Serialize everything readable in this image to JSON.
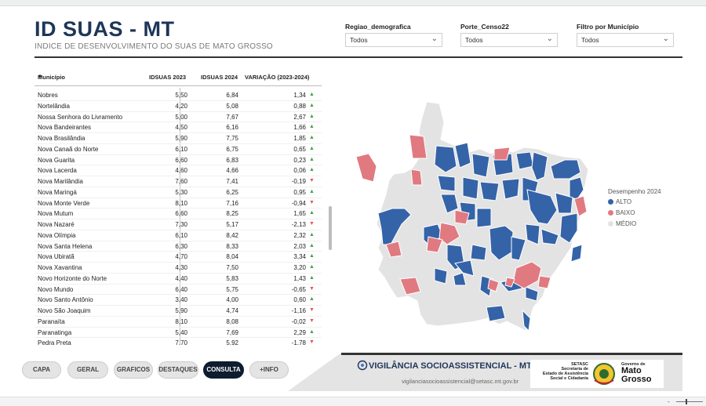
{
  "header": {
    "title": "ID SUAS - MT",
    "subtitle": "INDICE DE DESENVOLVIMENTO DO SUAS DE MATO GROSSO"
  },
  "filters": [
    {
      "label": "Regiao_demografica",
      "value": "Todos"
    },
    {
      "label": "Porte_Censo22",
      "value": "Todos"
    },
    {
      "label": "Filtro por Município",
      "value": "Todos"
    }
  ],
  "table": {
    "columns": [
      "Município",
      "IDSUAS 2023",
      "IDSUAS 2024",
      "VARIAÇÃO (2023-2024)"
    ],
    "rows": [
      {
        "name": "Nobres",
        "a": "5,50",
        "b": "6,84",
        "v": "1,34",
        "trend": "up"
      },
      {
        "name": "Nortelândia",
        "a": "4,20",
        "b": "5,08",
        "v": "0,88",
        "trend": "up"
      },
      {
        "name": "Nossa Senhora do Livramento",
        "a": "5,00",
        "b": "7,67",
        "v": "2,67",
        "trend": "up"
      },
      {
        "name": "Nova Bandeirantes",
        "a": "4,50",
        "b": "6,16",
        "v": "1,66",
        "trend": "up"
      },
      {
        "name": "Nova Brasilândia",
        "a": "5,90",
        "b": "7,75",
        "v": "1,85",
        "trend": "up"
      },
      {
        "name": "Nova Canaã do Norte",
        "a": "6,10",
        "b": "6,75",
        "v": "0,65",
        "trend": "up"
      },
      {
        "name": "Nova Guarita",
        "a": "6,60",
        "b": "6,83",
        "v": "0,23",
        "trend": "up"
      },
      {
        "name": "Nova Lacerda",
        "a": "4,60",
        "b": "4,66",
        "v": "0,06",
        "trend": "up"
      },
      {
        "name": "Nova Marilândia",
        "a": "7,60",
        "b": "7,41",
        "v": "-0,19",
        "trend": "down"
      },
      {
        "name": "Nova Maringá",
        "a": "5,30",
        "b": "6,25",
        "v": "0,95",
        "trend": "up"
      },
      {
        "name": "Nova Monte Verde",
        "a": "8,10",
        "b": "7,16",
        "v": "-0,94",
        "trend": "down"
      },
      {
        "name": "Nova Mutum",
        "a": "6,60",
        "b": "8,25",
        "v": "1,65",
        "trend": "up"
      },
      {
        "name": "Nova Nazaré",
        "a": "7,30",
        "b": "5,17",
        "v": "-2,13",
        "trend": "down"
      },
      {
        "name": "Nova Olímpia",
        "a": "6,10",
        "b": "8,42",
        "v": "2,32",
        "trend": "up"
      },
      {
        "name": "Nova Santa Helena",
        "a": "6,30",
        "b": "8,33",
        "v": "2,03",
        "trend": "up"
      },
      {
        "name": "Nova Ubiratã",
        "a": "4,70",
        "b": "8,04",
        "v": "3,34",
        "trend": "up"
      },
      {
        "name": "Nova Xavantina",
        "a": "4,30",
        "b": "7,50",
        "v": "3,20",
        "trend": "up"
      },
      {
        "name": "Novo Horizonte do Norte",
        "a": "4,40",
        "b": "5,83",
        "v": "1,43",
        "trend": "up"
      },
      {
        "name": "Novo Mundo",
        "a": "6,40",
        "b": "5,75",
        "v": "-0,65",
        "trend": "down"
      },
      {
        "name": "Novo Santo Antônio",
        "a": "3,40",
        "b": "4,00",
        "v": "0,60",
        "trend": "up"
      },
      {
        "name": "Novo São Joaquim",
        "a": "5,90",
        "b": "4,74",
        "v": "-1,16",
        "trend": "down"
      },
      {
        "name": "Paranaíta",
        "a": "8,10",
        "b": "8,08",
        "v": "-0,02",
        "trend": "down"
      },
      {
        "name": "Paranatinga",
        "a": "5,40",
        "b": "7,69",
        "v": "2,29",
        "trend": "up"
      },
      {
        "name": "Pedra Preta",
        "a": "7,70",
        "b": "5,92",
        "v": "-1,78",
        "trend": "down"
      }
    ]
  },
  "legend": {
    "title": "Desempenho 2024",
    "items": [
      {
        "label": "ALTO",
        "color": "#3463a8"
      },
      {
        "label": "BAIXO",
        "color": "#e07a80"
      },
      {
        "label": "MÉDIO",
        "color": "#e3e3e3"
      }
    ]
  },
  "nav": [
    "CAPA",
    "GERAL",
    "GRAFICOS",
    "DESTAQUES",
    "CONSULTA",
    "+INFO"
  ],
  "nav_active": "CONSULTA",
  "footer": {
    "title": "VIGILÂNCIA SOCIOASSISTENCIAL - MT",
    "email": "vigilanciasocioassistencial@setasc.mt.gov.br",
    "setasc_lines": [
      "SETASC",
      "Secretaria de",
      "Estado de Assistência",
      "Social e Cidadania"
    ],
    "gov_small": "Governo de",
    "gov_big_1": "Mato",
    "gov_big_2": "Grosso"
  },
  "colors": {
    "accent": "#1d3658",
    "alto": "#3463a8",
    "baixo": "#e07a80",
    "medio": "#e3e3e3"
  }
}
